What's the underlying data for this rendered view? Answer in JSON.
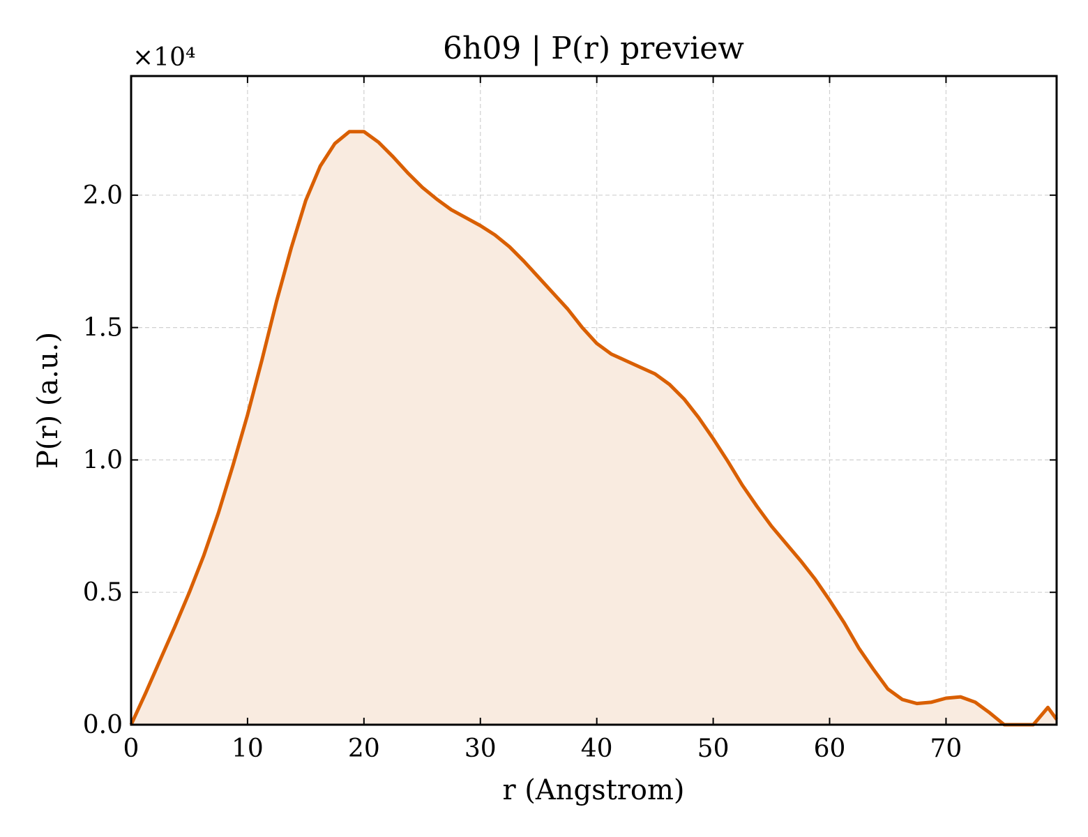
{
  "chart_data": {
    "type": "area",
    "title": "6h09 | P(r) preview",
    "xlabel": "r (Angstrom)",
    "ylabel": "P(r) (a.u.)",
    "y_multiplier": "×10⁴",
    "xlim": [
      0,
      79.5
    ],
    "ylim": [
      0,
      2.45
    ],
    "xticks": [
      0,
      10,
      20,
      30,
      40,
      50,
      60,
      70
    ],
    "xtick_labels": [
      "0",
      "10",
      "20",
      "30",
      "40",
      "50",
      "60",
      "70"
    ],
    "yticks": [
      0,
      0.5,
      1.0,
      1.5,
      2.0
    ],
    "ytick_labels": [
      "0.0",
      "0.5",
      "1.0",
      "1.5",
      "2.0"
    ],
    "grid": true,
    "colors": {
      "line": "#d95f02",
      "fill": "#f9ebe0"
    },
    "series": [
      {
        "x": [
          0,
          1.25,
          2.5,
          3.75,
          5,
          6.25,
          7.5,
          8.75,
          10,
          11.25,
          12.5,
          13.75,
          15,
          16.25,
          17.5,
          18.75,
          20,
          21.25,
          22.5,
          23.75,
          25,
          26.25,
          27.5,
          28.75,
          30,
          31.25,
          32.5,
          33.75,
          35,
          36.25,
          37.5,
          38.75,
          40,
          41.25,
          42.5,
          43.75,
          45,
          46.25,
          47.5,
          48.75,
          50,
          51.25,
          52.5,
          53.75,
          55,
          56.25,
          57.5,
          58.75,
          60,
          61.25,
          62.5,
          63.75,
          65,
          66.25,
          67.5,
          68.75,
          70,
          71.25,
          72.5,
          73.75,
          75,
          76.25,
          77.5,
          78.75,
          79.5
        ],
        "y": [
          0.0,
          0.12,
          0.245,
          0.37,
          0.5,
          0.64,
          0.8,
          0.98,
          1.17,
          1.38,
          1.6,
          1.8,
          1.98,
          2.11,
          2.195,
          2.24,
          2.24,
          2.2,
          2.145,
          2.085,
          2.03,
          1.985,
          1.945,
          1.915,
          1.885,
          1.85,
          1.805,
          1.75,
          1.69,
          1.63,
          1.57,
          1.5,
          1.44,
          1.4,
          1.375,
          1.35,
          1.325,
          1.285,
          1.23,
          1.16,
          1.08,
          0.995,
          0.905,
          0.825,
          0.75,
          0.685,
          0.62,
          0.55,
          0.47,
          0.385,
          0.29,
          0.21,
          0.135,
          0.095,
          0.08,
          0.085,
          0.1,
          0.105,
          0.085,
          0.045,
          0.0,
          0.0,
          0.0,
          0.065,
          0.02
        ]
      }
    ]
  }
}
